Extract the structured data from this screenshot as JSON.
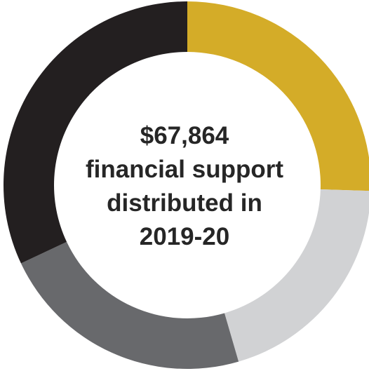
{
  "chart_data": {
    "type": "pie",
    "variant": "donut",
    "title": "",
    "slices": [
      {
        "value": 25.5,
        "color": "#d4ac28"
      },
      {
        "value": 20.0,
        "color": "#d1d2d4"
      },
      {
        "value": 22.5,
        "color": "#68696c"
      },
      {
        "value": 32.0,
        "color": "#231f20"
      }
    ],
    "center_text": [
      "$67,864",
      "financial support",
      "distributed in",
      "2019-20"
    ],
    "legend": "none"
  }
}
